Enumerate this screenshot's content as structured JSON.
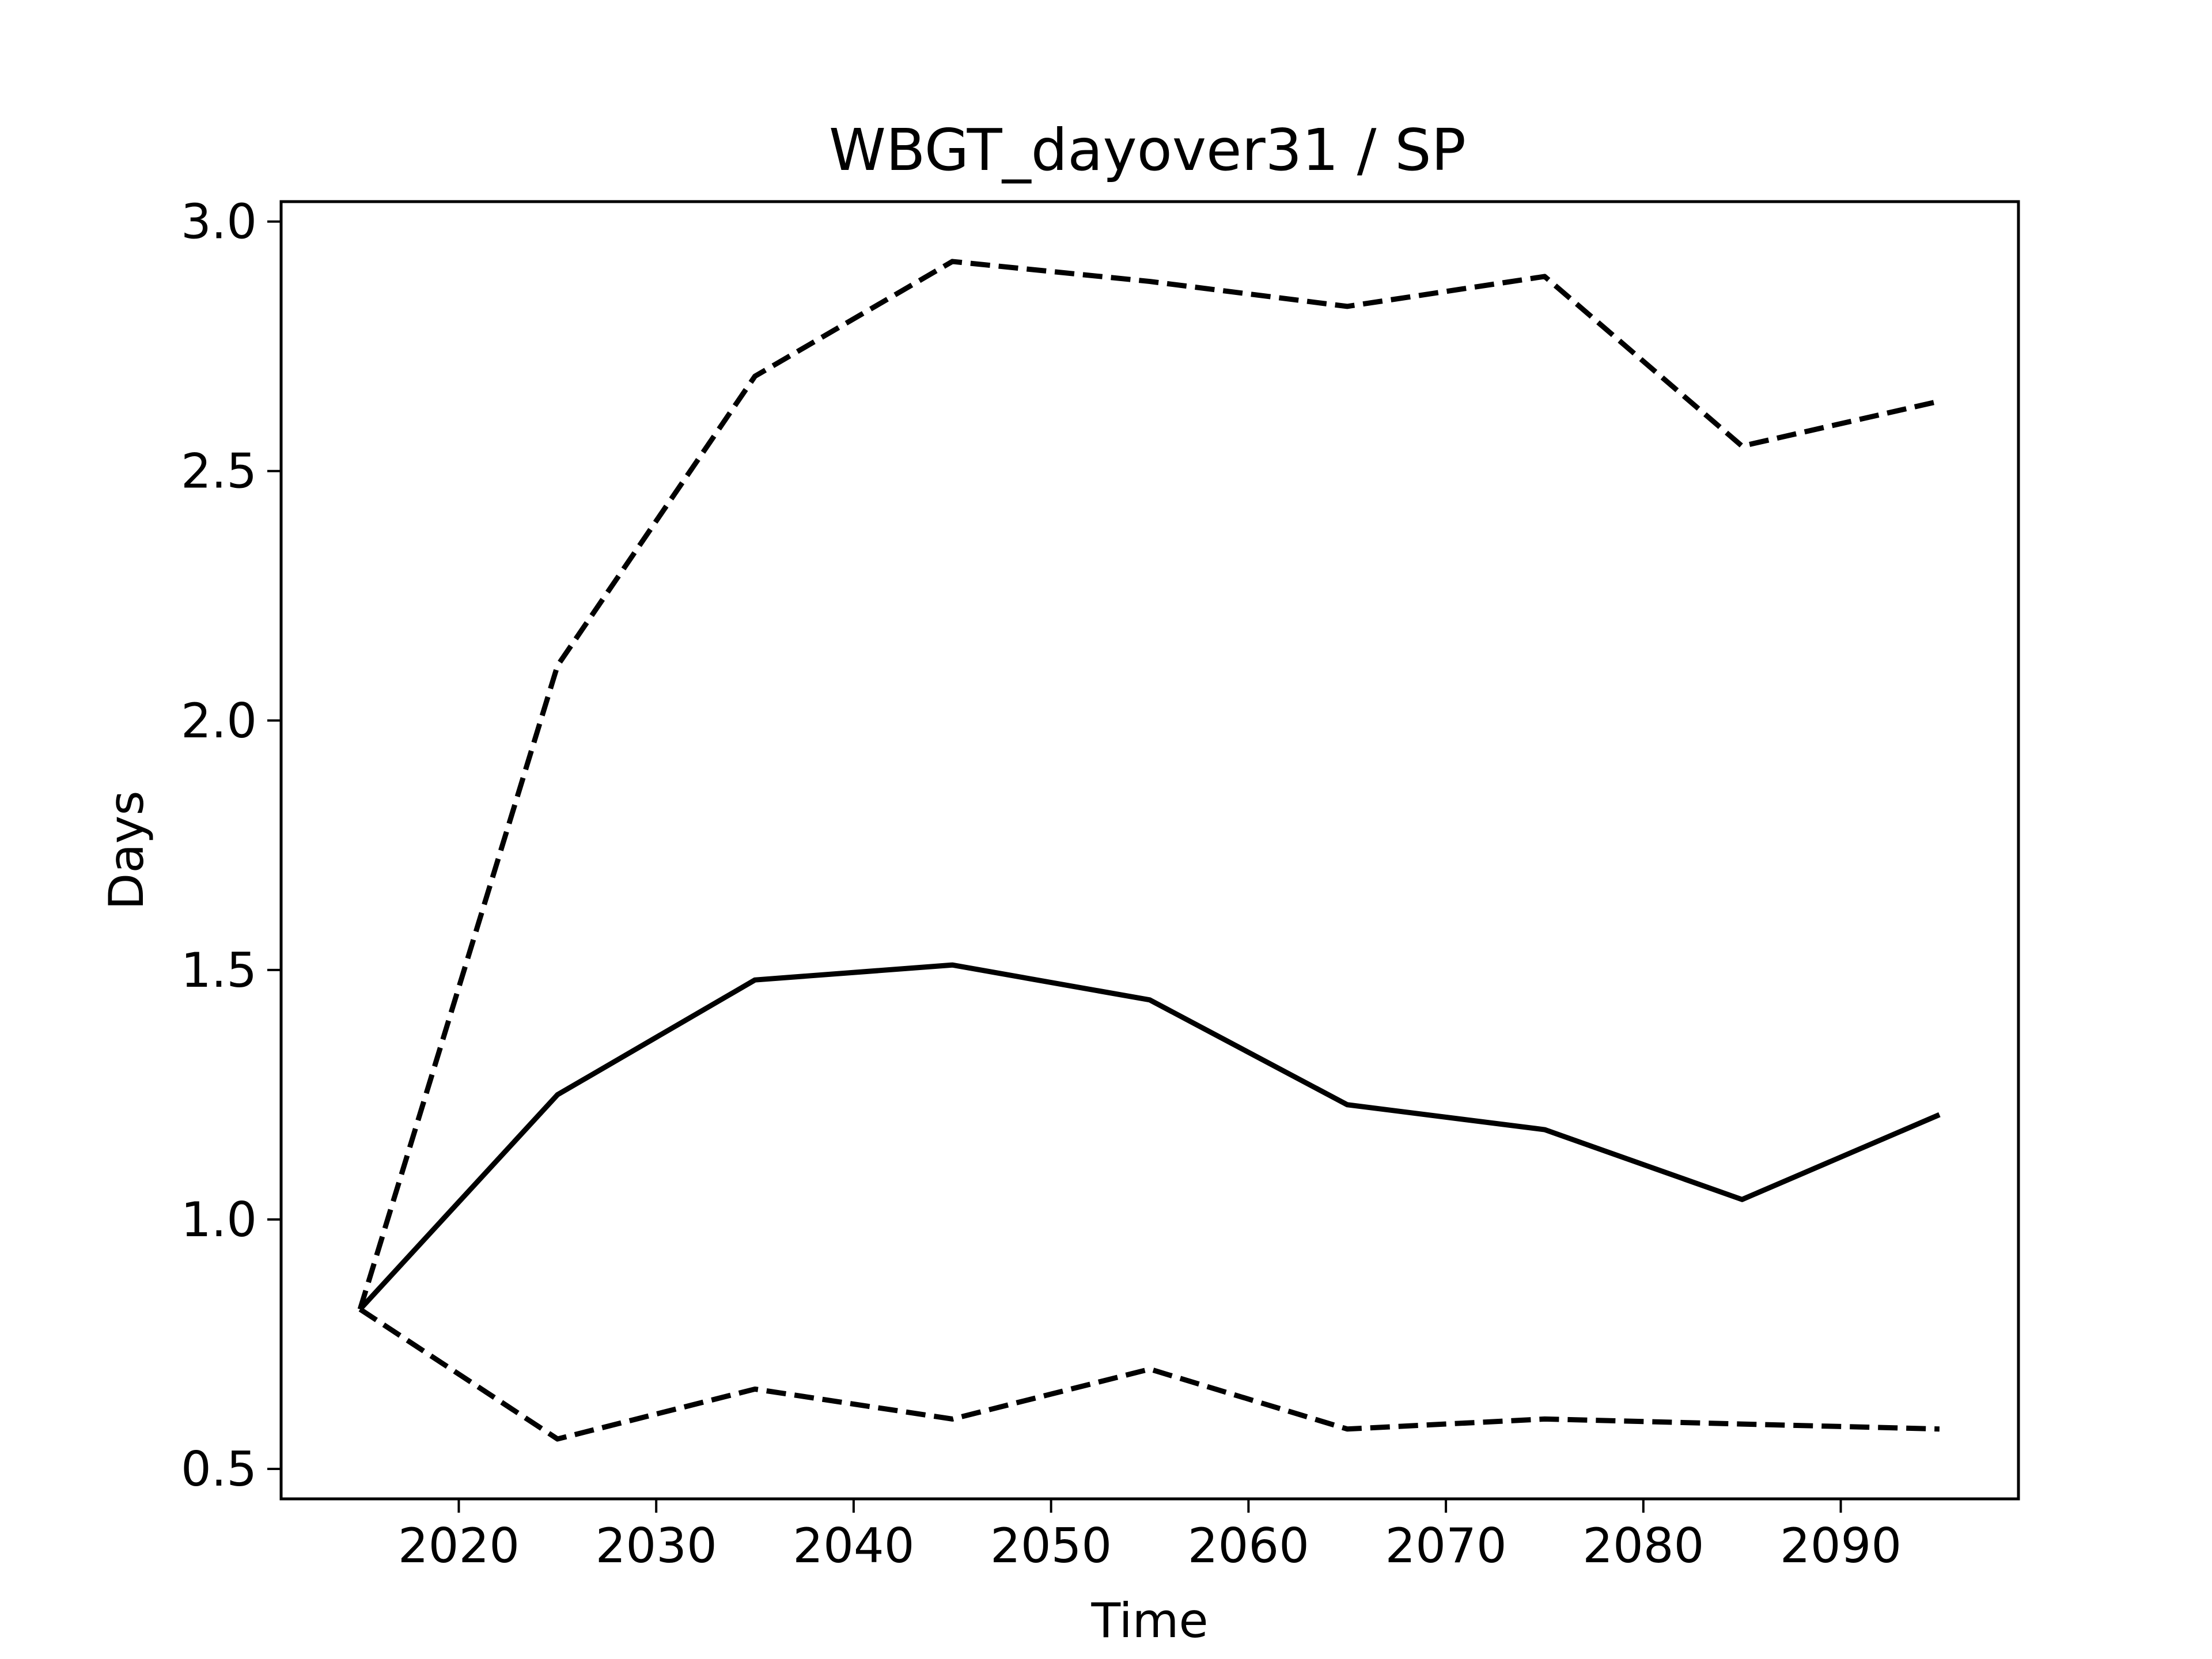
{
  "chart_data": {
    "type": "line",
    "title": "WBGT_dayover31 / SP",
    "xlabel": "Time",
    "ylabel": "Days",
    "xlim": [
      2011,
      2099
    ],
    "ylim": [
      0.44,
      3.04
    ],
    "x_ticks": [
      2020,
      2030,
      2040,
      2050,
      2060,
      2070,
      2080,
      2090
    ],
    "y_ticks": [
      0.5,
      1.0,
      1.5,
      2.0,
      2.5,
      3.0
    ],
    "x_tick_labels": [
      "2020",
      "2030",
      "2040",
      "2050",
      "2060",
      "2070",
      "2080",
      "2090"
    ],
    "y_tick_labels": [
      "0.5",
      "1.0",
      "1.5",
      "2.0",
      "2.5",
      "3.0"
    ],
    "grid": false,
    "legend": "none",
    "x": [
      2015,
      2025,
      2035,
      2045,
      2055,
      2065,
      2075,
      2085,
      2095
    ],
    "series": [
      {
        "style": "solid",
        "color": "#000000",
        "values": [
          0.82,
          1.25,
          1.48,
          1.51,
          1.44,
          1.23,
          1.18,
          1.04,
          1.21
        ]
      },
      {
        "style": "dashed",
        "color": "#000000",
        "values": [
          0.82,
          2.11,
          2.69,
          2.92,
          2.88,
          2.83,
          2.89,
          2.55,
          2.64
        ]
      },
      {
        "style": "dashed",
        "color": "#000000",
        "values": [
          0.82,
          0.56,
          0.66,
          0.6,
          0.7,
          0.58,
          0.6,
          0.59,
          0.58
        ]
      }
    ]
  }
}
